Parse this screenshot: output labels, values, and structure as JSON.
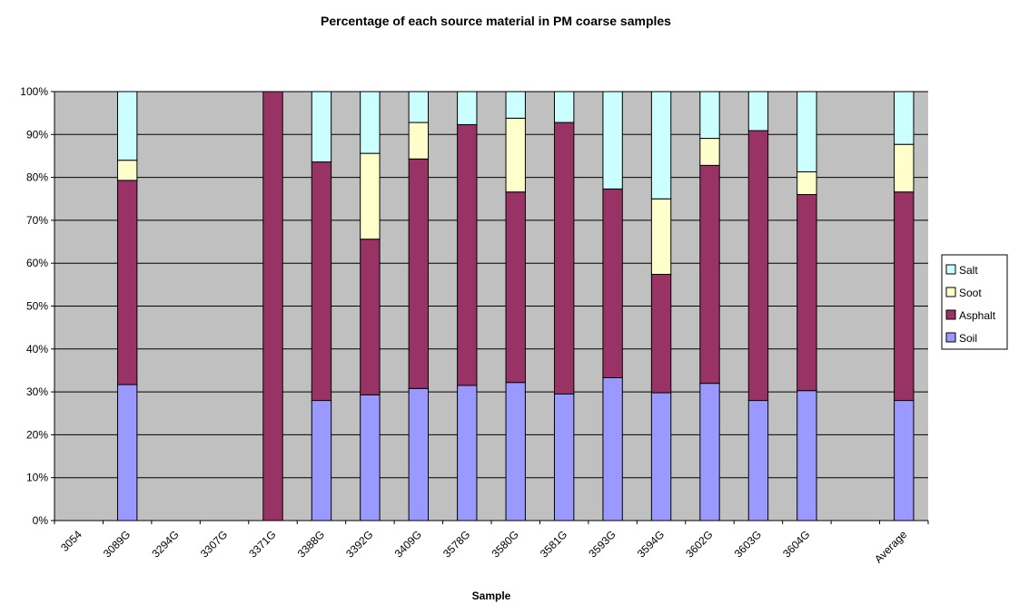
{
  "chart_data": {
    "type": "bar",
    "stacked": true,
    "percent_stacked": true,
    "title": "Percentage of each source material in PM coarse samples",
    "xlabel": "Sample",
    "ylabel": "",
    "ylim": [
      0,
      100
    ],
    "yticks": [
      "0%",
      "10%",
      "20%",
      "30%",
      "40%",
      "50%",
      "60%",
      "70%",
      "80%",
      "90%",
      "100%"
    ],
    "grid": true,
    "legend_position": "right",
    "categories": [
      "3054",
      "3089G",
      "3294G",
      "3307G",
      "3371G",
      "3388G",
      "3392G",
      "3409G",
      "3578G",
      "3580G",
      "3581G",
      "3593G",
      "3594G",
      "3602G",
      "3603G",
      "3604G",
      "",
      "Average"
    ],
    "series": [
      {
        "name": "Soil",
        "color": "#9999ff",
        "values": [
          0,
          31.7,
          0,
          0,
          0,
          28,
          29.3,
          30.8,
          31.5,
          32.2,
          29.5,
          33.3,
          29.8,
          32,
          28,
          30.3,
          0,
          28
        ]
      },
      {
        "name": "Asphalt",
        "color": "#993366",
        "values": [
          0,
          47.6,
          0,
          0,
          100,
          55.6,
          36.3,
          53.5,
          60.8,
          44.4,
          63.3,
          44,
          27.6,
          50.8,
          62.9,
          45.7,
          0,
          48.6
        ]
      },
      {
        "name": "Soot",
        "color": "#ffffcc",
        "values": [
          0,
          4.7,
          0,
          0,
          0,
          0,
          20,
          8.5,
          0,
          17.2,
          0,
          0,
          17.6,
          6.3,
          0,
          5.3,
          0,
          11.1
        ]
      },
      {
        "name": "Salt",
        "color": "#ccffff",
        "values": [
          0,
          16,
          0,
          0,
          0,
          16.4,
          14.4,
          7.2,
          7.7,
          6.2,
          7.2,
          22.7,
          25,
          10.9,
          9.1,
          18.7,
          0,
          12.3
        ]
      }
    ],
    "legend_order": [
      "Salt",
      "Soot",
      "Asphalt",
      "Soil"
    ]
  },
  "colors": {
    "plot_background": "#c0c0c0",
    "gridline": "#000000",
    "bar_outline": "#000000"
  }
}
